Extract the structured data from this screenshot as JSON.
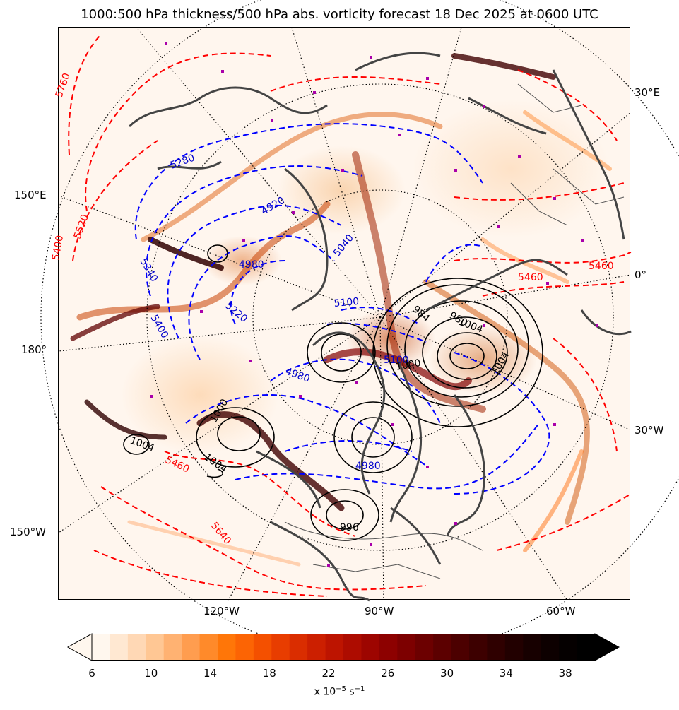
{
  "title": "1000:500 hPa thickness/500 hPa abs. vorticity forecast 18 Dec 2025 at 0600 UTC",
  "lon_labels": {
    "e30": "30°E",
    "zero": "0°",
    "w30": "30°W",
    "e150": "150°E",
    "d180": "180°",
    "w150": "150°W",
    "w120": "120°W",
    "w90": "90°W",
    "w60": "60°W"
  },
  "thickness_labels_red": [
    "5760",
    "5520",
    "5460",
    "5640",
    "5460",
    "5460",
    "5400"
  ],
  "thickness_labels_blue": [
    "4920",
    "4980",
    "5040",
    "5100",
    "5220",
    "5340",
    "5400",
    "4980",
    "5100",
    "4980",
    "5280"
  ],
  "mslp_labels": [
    "1004",
    "1000",
    "1004",
    "996",
    "980",
    "984",
    "1004",
    "1000",
    "1004"
  ],
  "colorbar": {
    "ticks": [
      "6",
      "10",
      "14",
      "18",
      "22",
      "26",
      "30",
      "34",
      "38"
    ],
    "unit_prefix": "x 10",
    "unit_exp1": "−5",
    "unit_mid": " s",
    "unit_exp2": "−1",
    "colors": [
      "#fff7ee",
      "#ffe8d2",
      "#ffd8b5",
      "#ffc794",
      "#ffb272",
      "#ff9d4f",
      "#ff8a2a",
      "#ff7608",
      "#fc6404",
      "#f45000",
      "#e83d00",
      "#da2d00",
      "#cc1f00",
      "#bd1400",
      "#ad0c00",
      "#9d0500",
      "#8d0100",
      "#7d0000",
      "#6c0000",
      "#5c0000",
      "#4c0000",
      "#3d0000",
      "#2f0000",
      "#220000",
      "#170000",
      "#0d0000",
      "#050000",
      "#000000"
    ]
  },
  "colors": {
    "thickness_warm": "#ff0000",
    "thickness_cold": "#0000ff",
    "mslp": "#000000",
    "coast": "#444444",
    "maxima": "#aa00aa"
  }
}
